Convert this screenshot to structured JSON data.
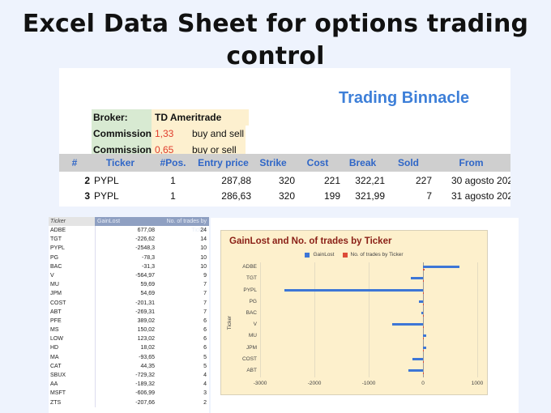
{
  "headline": {
    "line1": "Excel Data Sheet for options trading",
    "line2": "control"
  },
  "top_panel": {
    "title": "Trading Binnacle",
    "broker": [
      {
        "key": "Broker:",
        "value": "TD Ameritrade",
        "note": ""
      },
      {
        "key": "Commission",
        "value": "1,33",
        "note": "buy and sell"
      },
      {
        "key": "Commission",
        "value": "0,65",
        "note": "buy or sell"
      }
    ],
    "columns": [
      "#",
      "Ticker",
      "#Pos.",
      "Entry price",
      "Strike",
      "Cost",
      "Break",
      "Sold",
      "From"
    ],
    "rows": [
      {
        "num": "2",
        "ticker": "PYPL",
        "pos": "1",
        "entry": "287,88",
        "strike": "320",
        "cost": "221",
        "break": "322,21",
        "sold": "227",
        "from": "30 agosto 202"
      },
      {
        "num": "3",
        "ticker": "PYPL",
        "pos": "1",
        "entry": "286,63",
        "strike": "320",
        "cost": "199",
        "break": "321,99",
        "sold": "7",
        "from": "31 agosto 202"
      }
    ]
  },
  "data_table": {
    "columns": [
      "Ticker",
      "GainLost",
      "No. of trades by Ticker"
    ],
    "rows": [
      [
        "ADBE",
        "677,08",
        "24"
      ],
      [
        "TGT",
        "-226,62",
        "14"
      ],
      [
        "PYPL",
        "-2548,3",
        "10"
      ],
      [
        "PG",
        "-78,3",
        "10"
      ],
      [
        "BAC",
        "-31,3",
        "10"
      ],
      [
        "V",
        "-564,97",
        "9"
      ],
      [
        "MU",
        "59,69",
        "7"
      ],
      [
        "JPM",
        "54,69",
        "7"
      ],
      [
        "COST",
        "-201,31",
        "7"
      ],
      [
        "ABT",
        "-269,31",
        "7"
      ],
      [
        "PFE",
        "389,02",
        "6"
      ],
      [
        "MS",
        "150,02",
        "6"
      ],
      [
        "LOW",
        "123,02",
        "6"
      ],
      [
        "HD",
        "18,02",
        "6"
      ],
      [
        "MA",
        "-93,65",
        "5"
      ],
      [
        "CAT",
        "44,35",
        "5"
      ],
      [
        "SBUX",
        "-729,32",
        "4"
      ],
      [
        "AA",
        "-189,32",
        "4"
      ],
      [
        "MSFT",
        "-606,99",
        "3"
      ],
      [
        "ZTS",
        "-207,66",
        "2"
      ]
    ]
  },
  "colors": {
    "gainlost": "#3d76d6",
    "trades": "#dd4b39",
    "chart_bg": "#fdf0cc",
    "title_red": "#8a1f16",
    "binnacle_blue": "#3d7fd8"
  },
  "chart_data": {
    "type": "bar",
    "orientation": "horizontal",
    "title": "GainLost and No. of trades by Ticker",
    "xlabel": "",
    "ylabel": "Ticker",
    "categories": [
      "ADBE",
      "TGT",
      "PYPL",
      "PG",
      "BAC",
      "V",
      "MU",
      "JPM",
      "COST",
      "ABT"
    ],
    "series": [
      {
        "name": "GainLost",
        "values": [
          677.08,
          -226.62,
          -2548.3,
          -78.3,
          -31.3,
          -564.97,
          59.69,
          54.69,
          -201.31,
          -269.31
        ]
      },
      {
        "name": "No. of trades by Ticker",
        "values": [
          24,
          14,
          10,
          10,
          10,
          9,
          7,
          7,
          7,
          7
        ]
      }
    ],
    "xlim": [
      -3000,
      1000
    ],
    "xticks": [
      "-3000",
      "-2000",
      "-1000",
      "0",
      "1000"
    ],
    "grid": true,
    "legend_position": "top"
  }
}
